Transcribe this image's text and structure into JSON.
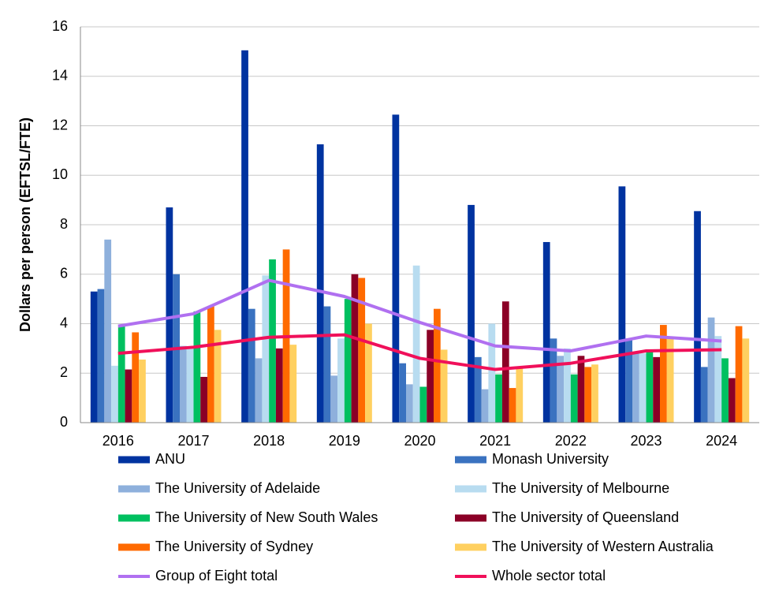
{
  "chart_data": {
    "type": "bar",
    "y_label": "Dollars per person (EFTSL/FTE)",
    "categories": [
      "2016",
      "2017",
      "2018",
      "2019",
      "2020",
      "2021",
      "2022",
      "2023",
      "2024"
    ],
    "ylim": [
      0,
      16
    ],
    "yticks": [
      0,
      2,
      4,
      6,
      8,
      10,
      12,
      14,
      16
    ],
    "grid": true,
    "series": [
      {
        "name": "ANU",
        "color": "#0033a0",
        "values": [
          5.3,
          8.7,
          15.05,
          11.25,
          12.45,
          8.8,
          7.3,
          9.55,
          8.55
        ]
      },
      {
        "name": "Monash University",
        "color": "#3a72c0",
        "values": [
          5.4,
          6.0,
          4.6,
          4.7,
          2.4,
          2.65,
          3.4,
          3.4,
          2.25
        ]
      },
      {
        "name": "The University of Adelaide",
        "color": "#8eb0dc",
        "values": [
          7.4,
          3.1,
          2.6,
          1.9,
          1.55,
          1.35,
          2.7,
          2.8,
          4.25
        ]
      },
      {
        "name": "The University of Melbourne",
        "color": "#b8dcf0",
        "values": [
          2.3,
          3.0,
          5.95,
          3.4,
          6.35,
          4.0,
          3.0,
          2.8,
          3.5
        ]
      },
      {
        "name": "The University of New South Wales",
        "color": "#00c060",
        "values": [
          3.9,
          4.5,
          6.6,
          5.0,
          1.45,
          1.95,
          1.95,
          2.9,
          2.6
        ]
      },
      {
        "name": "The University of Queensland",
        "color": "#8b0026",
        "values": [
          2.15,
          1.85,
          3.0,
          6.0,
          3.75,
          4.9,
          2.7,
          2.65,
          1.8
        ]
      },
      {
        "name": "The University of Sydney",
        "color": "#ff6a00",
        "values": [
          3.65,
          4.7,
          7.0,
          5.85,
          4.6,
          1.4,
          2.25,
          3.95,
          3.9
        ]
      },
      {
        "name": "The University of Western Australia",
        "color": "#ffd060",
        "values": [
          2.55,
          3.75,
          3.15,
          4.0,
          2.95,
          2.2,
          2.35,
          3.4,
          3.4
        ]
      },
      {
        "name": "Group of Eight total",
        "color": "#b070f0",
        "type": "line",
        "values": [
          3.9,
          4.4,
          5.75,
          5.1,
          4.05,
          3.1,
          2.9,
          3.5,
          3.3
        ]
      },
      {
        "name": "Whole sector total",
        "color": "#f0105a",
        "type": "line",
        "values": [
          2.8,
          3.05,
          3.45,
          3.55,
          2.6,
          2.15,
          2.4,
          2.9,
          2.95
        ]
      }
    ]
  }
}
